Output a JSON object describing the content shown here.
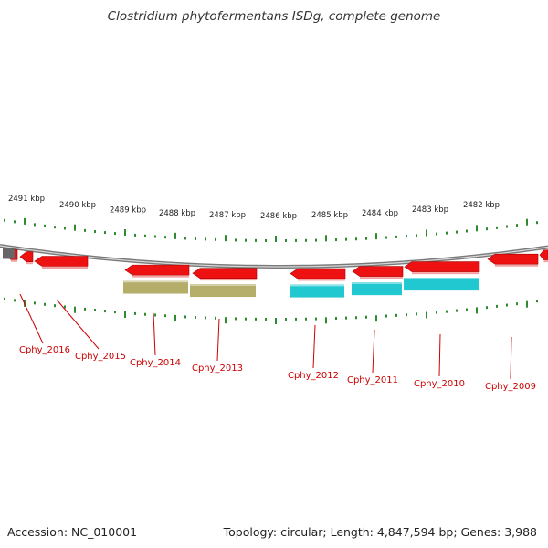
{
  "title": "Clostridium phytofermentans ISDg, complete genome",
  "footer": {
    "accession": "Accession: NC_010001",
    "summary": "Topology: circular; Length: 4,847,594 bp; Genes: 3,988"
  },
  "colors": {
    "tick": "#2e8b2e",
    "backbone": "#888888",
    "gene_forward": "#ee1111",
    "gene_grey": "#666666",
    "cds_olive": "#b5ad6a",
    "cds_cyan": "#22c8d0",
    "label": "#cc0000",
    "scale_text": "#222222"
  },
  "scale_labels": [
    "2491 kbp",
    "2490 kbp",
    "2489 kbp",
    "2488 kbp",
    "2487 kbp",
    "2486 kbp",
    "2485 kbp",
    "2484 kbp",
    "2483 kbp",
    "2482 kbp"
  ],
  "gene_labels": [
    "Cphy_2016",
    "Cphy_2015",
    "Cphy_2014",
    "Cphy_2013",
    "Cphy_2012",
    "Cphy_2011",
    "Cphy_2010",
    "Cphy_2009"
  ]
}
